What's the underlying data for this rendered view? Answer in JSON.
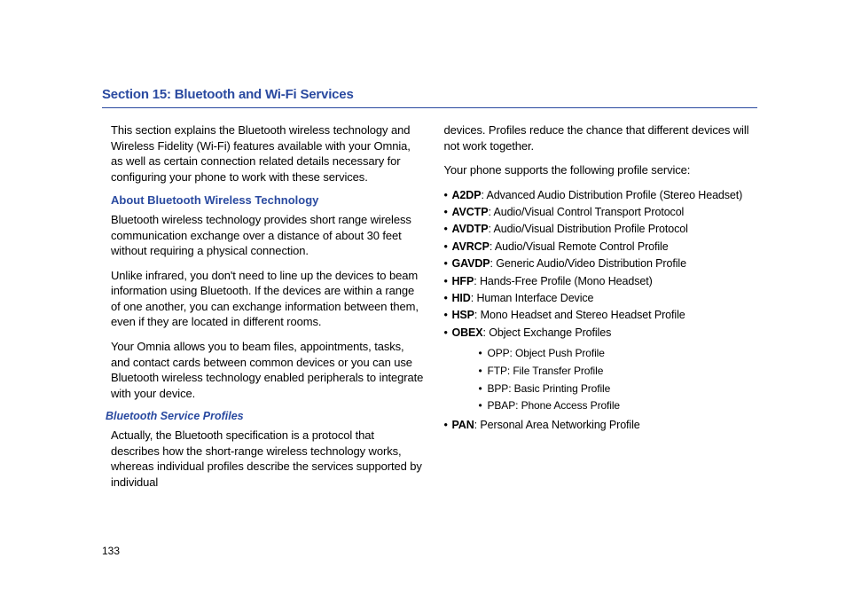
{
  "colors": {
    "heading_blue": "#2a4aa0",
    "body_text": "#000000",
    "background": "#ffffff",
    "rule": "#2a4aa0"
  },
  "typography": {
    "title_fontsize": 15,
    "h2_fontsize": 13,
    "h3_fontsize": 12.5,
    "body_fontsize": 13,
    "list_fontsize": 12.5,
    "sublist_fontsize": 12,
    "page_number_fontsize": 12,
    "font_family": "Arial Narrow / Helvetica Condensed"
  },
  "page_number": "133",
  "section_title": "Section 15: Bluetooth and Wi-Fi Services",
  "left": {
    "intro": "This section explains the Bluetooth wireless technology and Wireless Fidelity (Wi-Fi) features available with your Omnia, as well as certain connection related details necessary for configuring your phone to work with these services.",
    "h2": "About Bluetooth Wireless Technology",
    "p1": "Bluetooth wireless technology provides short range wireless communication exchange over a distance of about 30 feet without requiring a physical connection.",
    "p2": "Unlike infrared, you don't need to line up the devices to beam information using Bluetooth. If the devices are within a range of one another, you can exchange information between them, even if they are located in different rooms.",
    "p3": "Your Omnia allows you to beam files, appointments, tasks, and contact cards between common devices or you can use Bluetooth wireless technology enabled peripherals to integrate with your device.",
    "h3": "Bluetooth Service Profiles",
    "p4": "Actually, the Bluetooth specification is a protocol that describes how the short-range wireless technology works, whereas individual profiles describe the services supported by individual"
  },
  "right": {
    "cont": "devices. Profiles reduce the chance that different devices will not work together.",
    "lead": "Your phone supports the following profile service:",
    "profiles": [
      {
        "code": "A2DP",
        "desc": ": Advanced Audio Distribution Profile (Stereo Headset)"
      },
      {
        "code": "AVCTP",
        "desc": ": Audio/Visual Control Transport Protocol"
      },
      {
        "code": "AVDTP",
        "desc": ": Audio/Visual Distribution Profile Protocol"
      },
      {
        "code": "AVRCP",
        "desc": ": Audio/Visual Remote Control Profile"
      },
      {
        "code": "GAVDP",
        "desc": ": Generic Audio/Video Distribution Profile"
      },
      {
        "code": "HFP",
        "desc": ": Hands-Free Profile (Mono Headset)"
      },
      {
        "code": "HID",
        "desc": ": Human Interface Device"
      },
      {
        "code": "HSP",
        "desc": ": Mono Headset and Stereo Headset Profile"
      },
      {
        "code": "OBEX",
        "desc": ": Object Exchange Profiles"
      }
    ],
    "sub": [
      "OPP: Object Push Profile",
      "FTP: File Transfer Profile",
      "BPP: Basic Printing Profile",
      "PBAP: Phone Access Profile"
    ],
    "last": {
      "code": "PAN",
      "desc": ": Personal Area Networking Profile"
    }
  }
}
